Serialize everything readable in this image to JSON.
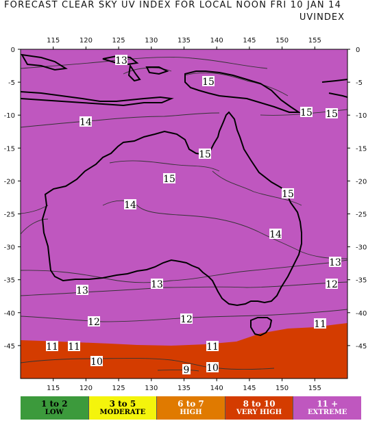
{
  "title": "FORECAST CLEAR SKY UV INDEX FOR LOCAL NOON FRI 10 JAN 14",
  "subtitle": "UVINDEX",
  "axes": {
    "lon_ticks": [
      "115",
      "120",
      "125",
      "130",
      "135",
      "140",
      "145",
      "150",
      "155"
    ],
    "lat_ticks": [
      "0",
      "-5",
      "-10",
      "-15",
      "-20",
      "-25",
      "-30",
      "-35",
      "-40",
      "-45"
    ]
  },
  "contour_labels": [
    {
      "text": "13"
    },
    {
      "text": "15"
    },
    {
      "text": "15"
    },
    {
      "text": "15"
    },
    {
      "text": "14"
    },
    {
      "text": "15"
    },
    {
      "text": "15"
    },
    {
      "text": "15"
    },
    {
      "text": "14"
    },
    {
      "text": "14"
    },
    {
      "text": "13"
    },
    {
      "text": "13"
    },
    {
      "text": "13"
    },
    {
      "text": "12"
    },
    {
      "text": "12"
    },
    {
      "text": "12"
    },
    {
      "text": "11"
    },
    {
      "text": "11"
    },
    {
      "text": "11"
    },
    {
      "text": "11"
    },
    {
      "text": "10"
    },
    {
      "text": "10"
    },
    {
      "text": "9"
    }
  ],
  "legend": [
    {
      "range": "1 to 2",
      "category": "LOW",
      "color": "#3c9a3c",
      "text_color": "#000000"
    },
    {
      "range": "3 to 5",
      "category": "MODERATE",
      "color": "#f4f40c",
      "text_color": "#000000"
    },
    {
      "range": "6 to 7",
      "category": "HIGH",
      "color": "#e07a00",
      "text_color": "#ffffff"
    },
    {
      "range": "8 to 10",
      "category": "VERY HIGH",
      "color": "#d43c00",
      "text_color": "#ffffff"
    },
    {
      "range": "11 +",
      "category": "EXTREME",
      "color": "#bf57bf",
      "text_color": "#ffffff"
    }
  ],
  "colors": {
    "extreme": "#bf57bf",
    "very_high": "#d43c00",
    "coast": "#000000"
  }
}
